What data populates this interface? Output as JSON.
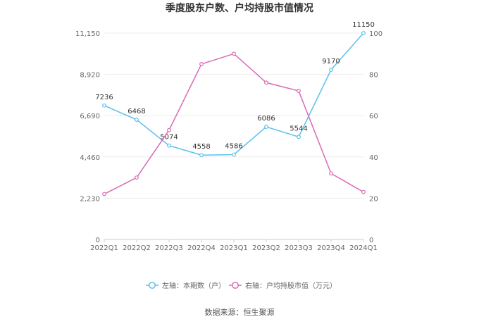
{
  "chart_data": {
    "type": "line",
    "title": "季度股东户数、户均持股市值情况",
    "categories": [
      "2022Q1",
      "2022Q2",
      "2022Q3",
      "2022Q4",
      "2023Q1",
      "2023Q2",
      "2023Q3",
      "2023Q4",
      "2024Q1"
    ],
    "left_axis": {
      "ticks": [
        "0",
        "2,230",
        "4,460",
        "6,690",
        "8,920",
        "11,150"
      ],
      "ylim": [
        0,
        11150
      ]
    },
    "right_axis": {
      "ticks": [
        "0",
        "20",
        "40",
        "60",
        "80",
        "100"
      ],
      "ylim": [
        0,
        100
      ]
    },
    "series": [
      {
        "name": "左轴：本期数（户）",
        "axis": "left",
        "color": "#5bc0eb",
        "values": [
          7236,
          6468,
          5074,
          4558,
          4586,
          6086,
          5544,
          9170,
          11150
        ],
        "labels": [
          "7236",
          "6468",
          "5074",
          "4558",
          "4586",
          "6086",
          "5544",
          "9170",
          "11150"
        ]
      },
      {
        "name": "右轴：户均持股市值（万元）",
        "axis": "right",
        "color": "#d96bb3",
        "values": [
          22,
          30,
          53,
          85,
          90,
          76,
          72,
          32,
          23
        ]
      }
    ],
    "grid": true,
    "legend_position": "bottom"
  },
  "source": "数据来源：恒生聚源"
}
